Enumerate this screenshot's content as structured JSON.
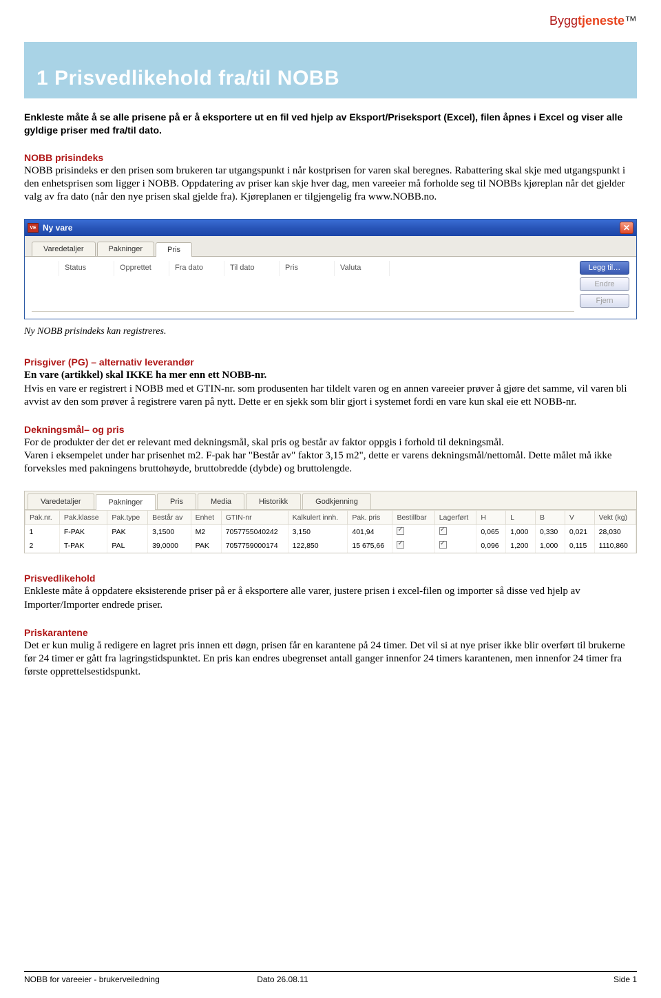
{
  "logo": {
    "part1": "Bygg",
    "part2": "tjeneste",
    "part3": "™"
  },
  "title": "1 Prisvedlikehold fra/til NOBB",
  "intro": "Enkleste måte å se alle prisene på er å eksportere ut en fil ved hjelp av Eksport/Priseksport (Excel), filen åpnes i Excel og viser alle gyldige priser med fra/til dato.",
  "s1": {
    "head": "NOBB prisindeks",
    "body": "NOBB prisindeks er den prisen som brukeren tar utgangspunkt i når kostprisen for varen skal beregnes. Rabattering skal skje med utgangspunkt i den enhetsprisen som ligger i NOBB. Oppdatering av priser kan skje hver dag, men vareeier må forholde seg til NOBBs kjøreplan når det gjelder valg av fra dato (når den nye prisen skal gjelde fra). Kjøreplanen er tilgjengelig fra www.NOBB.no."
  },
  "dialog": {
    "icon": "VE",
    "title": "Ny vare",
    "close": "✕",
    "tabs": [
      "Varedetaljer",
      "Pakninger",
      "Pris"
    ],
    "active_tab": 2,
    "columns": [
      "",
      "Status",
      "Opprettet",
      "Fra dato",
      "Til dato",
      "Pris",
      "Valuta"
    ],
    "buttons": {
      "add": "Legg til…",
      "edit": "Endre",
      "remove": "Fjern"
    }
  },
  "caption1": "Ny NOBB prisindeks kan registreres.",
  "s2": {
    "head": "Prisgiver (PG) – alternativ leverandør",
    "bold": "En vare (artikkel) skal IKKE ha mer enn ett NOBB-nr.",
    "body": "Hvis en vare er registrert i NOBB med et GTIN-nr. som produsenten har tildelt varen og en annen vareeier prøver å gjøre det samme, vil varen bli avvist av den som prøver å registrere varen på nytt. Dette er en sjekk som blir gjort i systemet fordi en vare kun skal eie ett NOBB-nr."
  },
  "s3": {
    "head": "Dekningsmål– og pris",
    "body": "For de produkter der det er relevant med dekningsmål, skal pris og består av faktor oppgis i forhold til dekningsmål.\nVaren i eksempelet under har prisenhet m2. F-pak har \"Består av\" faktor 3,15 m2\", dette er varens dekningsmål/nettomål. Dette målet må ikke forveksles med pakningens bruttohøyde, bruttobredde (dybde) og bruttolengde."
  },
  "pak": {
    "tabs": [
      "Varedetaljer",
      "Pakninger",
      "Pris",
      "Media",
      "Historikk",
      "Godkjenning"
    ],
    "active_tab": 1,
    "columns": [
      "Pak.nr.",
      "Pak.klasse",
      "Pak.type",
      "Består av",
      "Enhet",
      "GTIN-nr",
      "Kalkulert innh.",
      "Pak. pris",
      "Bestillbar",
      "Lagerført",
      "H",
      "L",
      "B",
      "V",
      "Vekt (kg)"
    ],
    "rows": [
      [
        "1",
        "F-PAK",
        "PAK",
        "3,1500",
        "M2",
        "7057755040242",
        "3,150",
        "401,94",
        "✓",
        "✓",
        "0,065",
        "1,000",
        "0,330",
        "0,021",
        "28,030"
      ],
      [
        "2",
        "T-PAK",
        "PAL",
        "39,0000",
        "PAK",
        "7057759000174",
        "122,850",
        "15 675,66",
        "✓",
        "✓",
        "0,096",
        "1,200",
        "1,000",
        "0,115",
        "1110,860"
      ]
    ]
  },
  "s4": {
    "head": "Prisvedlikehold",
    "body": "Enkleste måte å oppdatere eksisterende priser på er å eksportere alle varer, justere prisen i excel-filen og importer så disse ved hjelp av Importer/Importer endrede priser."
  },
  "s5": {
    "head": "Priskarantene",
    "body": "Det er kun mulig å redigere en lagret pris innen ett døgn, prisen får en karantene på 24 timer. Det vil si at nye priser ikke blir overført til brukerne før 24 timer er gått fra lagringstidspunktet. En pris kan endres ubegrenset antall ganger innenfor 24 timers karantenen, men innenfor 24 timer fra første opprettelsestidspunkt."
  },
  "footer": {
    "left": "NOBB for vareeier - brukerveiledning",
    "center": "Dato 26.08.11",
    "right": "Side 1"
  }
}
